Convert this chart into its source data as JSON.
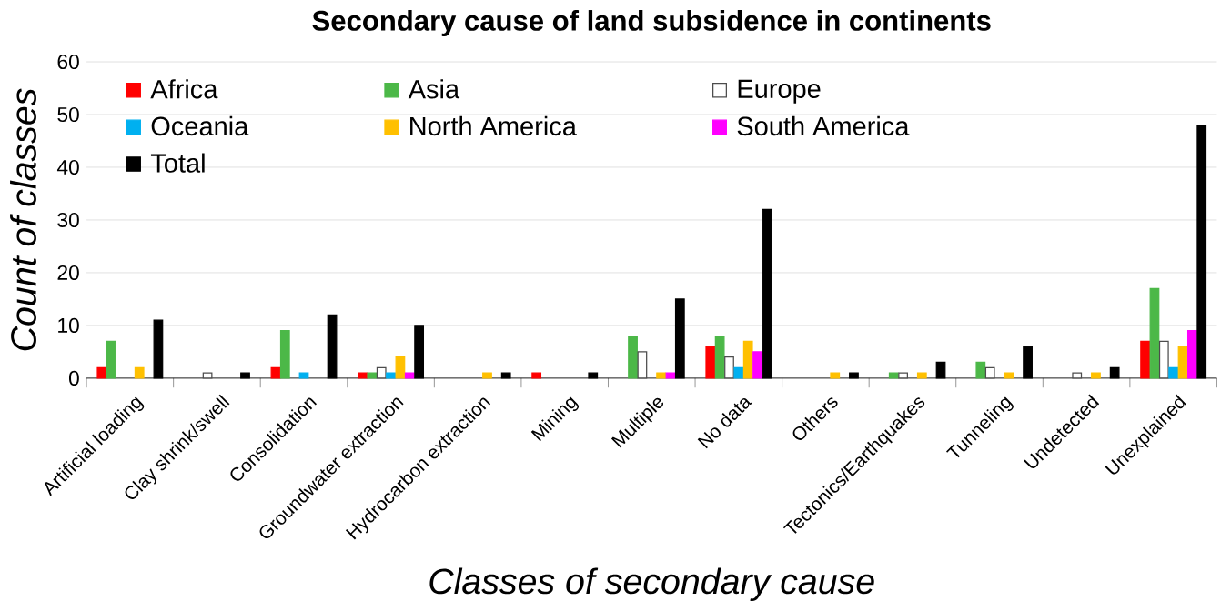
{
  "chart_data": {
    "type": "bar",
    "title": "Secondary cause of land subsidence in continents",
    "xlabel": "Classes of secondary cause",
    "ylabel": "Count of classes",
    "categories": [
      "Artificial loading",
      "Clay shrink/swell",
      "Consolidation",
      "Groundwater extraction",
      "Hydrocarbon extraction",
      "Mining",
      "Multiple",
      "No data",
      "Others",
      "Tectonics/Earthquakes",
      "Tunneling",
      "Undetected",
      "Unexplained"
    ],
    "series": [
      {
        "name": "Africa",
        "color": "#ff0000",
        "values": [
          2,
          0,
          2,
          1,
          0,
          1,
          0,
          6,
          0,
          0,
          0,
          0,
          7
        ]
      },
      {
        "name": "Asia",
        "color": "#4cb848",
        "values": [
          7,
          0,
          9,
          1,
          0,
          0,
          8,
          8,
          0,
          1,
          3,
          0,
          17
        ]
      },
      {
        "name": "Europe",
        "color": "#ffffff",
        "values": [
          0,
          1,
          0,
          2,
          0,
          0,
          5,
          4,
          0,
          1,
          2,
          1,
          7
        ]
      },
      {
        "name": "Oceania",
        "color": "#00b0f0",
        "values": [
          0,
          0,
          1,
          1,
          0,
          0,
          0,
          2,
          0,
          0,
          0,
          0,
          2
        ]
      },
      {
        "name": "North America",
        "color": "#ffc000",
        "values": [
          2,
          0,
          0,
          4,
          1,
          0,
          1,
          7,
          1,
          1,
          1,
          1,
          6
        ]
      },
      {
        "name": "South America",
        "color": "#ff00ff",
        "values": [
          0,
          0,
          0,
          1,
          0,
          0,
          1,
          5,
          0,
          0,
          0,
          0,
          9
        ]
      },
      {
        "name": "Total",
        "color": "#000000",
        "values": [
          11,
          1,
          12,
          10,
          1,
          1,
          15,
          32,
          1,
          3,
          6,
          2,
          48
        ]
      }
    ],
    "ylim": [
      0,
      60
    ],
    "yticks": [
      0,
      10,
      20,
      30,
      40,
      50,
      60
    ],
    "grid": "y",
    "legend": "top"
  }
}
